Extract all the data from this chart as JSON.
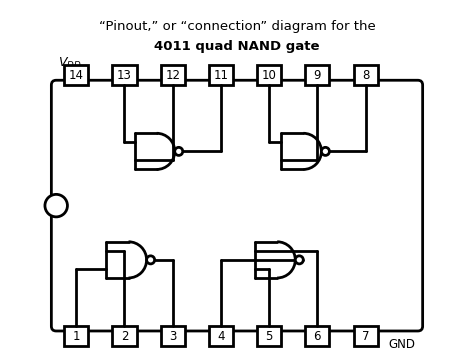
{
  "title_line1": "“Pinout,” or “connection” diagram for the",
  "title_line2": "4011 quad NAND gate",
  "top_pins": [
    14,
    13,
    12,
    11,
    10,
    9,
    8
  ],
  "bottom_pins": [
    1,
    2,
    3,
    4,
    5,
    6,
    7
  ],
  "bg_color": "#ffffff",
  "line_color": "#000000",
  "figsize": [
    4.74,
    3.59
  ],
  "dpi": 100
}
